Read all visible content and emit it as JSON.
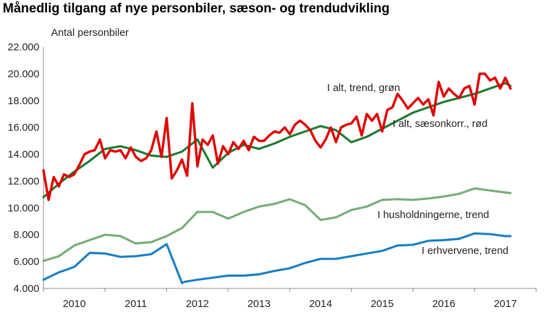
{
  "chart_data": {
    "type": "line",
    "title": "Månedlig tilgang af nye personbiler, sæson- og trendudvikling",
    "ylabel": "Antal personbiler",
    "xlabel": "",
    "ylim": [
      4000,
      22000
    ],
    "y_ticks": [
      "4.000",
      "6.000",
      "8.000",
      "10.000",
      "12.000",
      "14.000",
      "16.000",
      "18.000",
      "20.000",
      "22.000"
    ],
    "x_tick_labels": [
      "2010",
      "2011",
      "2012",
      "2013",
      "2014",
      "2015",
      "2016",
      "2017"
    ],
    "x_range": [
      2009.5,
      2017.5
    ],
    "grid": "none",
    "series": [
      {
        "name": "I alt, sæsonkorr., rød",
        "color": "#e00000",
        "x": [
          2009.5,
          2009.583,
          2009.667,
          2009.75,
          2009.833,
          2009.917,
          2010,
          2010.083,
          2010.167,
          2010.25,
          2010.333,
          2010.417,
          2010.5,
          2010.583,
          2010.667,
          2010.75,
          2010.833,
          2010.917,
          2011,
          2011.083,
          2011.167,
          2011.25,
          2011.333,
          2011.417,
          2011.5,
          2011.583,
          2011.667,
          2011.75,
          2011.833,
          2011.917,
          2012,
          2012.083,
          2012.167,
          2012.25,
          2012.333,
          2012.417,
          2012.5,
          2012.583,
          2012.667,
          2012.75,
          2012.833,
          2012.917,
          2013,
          2013.083,
          2013.167,
          2013.25,
          2013.333,
          2013.417,
          2013.5,
          2013.583,
          2013.667,
          2013.75,
          2013.833,
          2013.917,
          2014,
          2014.083,
          2014.167,
          2014.25,
          2014.333,
          2014.417,
          2014.5,
          2014.583,
          2014.667,
          2014.75,
          2014.833,
          2014.917,
          2015,
          2015.083,
          2015.167,
          2015.25,
          2015.333,
          2015.417,
          2015.5,
          2015.583,
          2015.667,
          2015.75,
          2015.833,
          2015.917,
          2016,
          2016.083,
          2016.167,
          2016.25,
          2016.333,
          2016.417,
          2016.5,
          2016.583,
          2016.667,
          2016.75,
          2016.833,
          2016.917,
          2017,
          2017.083
        ],
        "values": [
          12800,
          10600,
          12300,
          11600,
          12500,
          12300,
          12500,
          13200,
          14000,
          14200,
          14300,
          15100,
          13700,
          14300,
          14200,
          14300,
          13700,
          14500,
          13800,
          13500,
          13700,
          14300,
          15700,
          13800,
          16700,
          12200,
          12800,
          13600,
          12400,
          17800,
          13100,
          15100,
          14700,
          15400,
          13300,
          14600,
          14000,
          14900,
          14400,
          15000,
          14300,
          15300,
          15000,
          15000,
          15400,
          15700,
          15600,
          16000,
          15500,
          16200,
          16500,
          16200,
          15800,
          15000,
          14500,
          15100,
          16000,
          14900,
          16000,
          16200,
          16300,
          16800,
          15400,
          17000,
          16500,
          17000,
          15700,
          17300,
          17500,
          18500,
          18000,
          17400,
          17800,
          18200,
          17700,
          18100,
          16900,
          19400,
          18300,
          18900,
          18500,
          18200,
          18900,
          19100,
          17700,
          20000,
          20000,
          19500,
          19700,
          18900,
          19700,
          18900
        ]
      },
      {
        "name": "I alt, trend, grøn",
        "color": "#1e7a32",
        "x": [
          2009.5,
          2009.75,
          2010,
          2010.25,
          2010.5,
          2010.75,
          2011,
          2011.25,
          2011.5,
          2011.75,
          2012,
          2012.25,
          2012.5,
          2012.75,
          2013,
          2013.25,
          2013.5,
          2013.75,
          2014,
          2014.25,
          2014.5,
          2014.75,
          2015,
          2015.25,
          2015.5,
          2015.75,
          2016,
          2016.25,
          2016.5,
          2016.75,
          2017,
          2017.083
        ],
        "values": [
          10800,
          11800,
          12700,
          13500,
          14400,
          14600,
          14300,
          13900,
          13800,
          14200,
          15100,
          13000,
          14100,
          14700,
          14400,
          14800,
          15300,
          15700,
          16100,
          15800,
          14900,
          15300,
          15900,
          16500,
          17100,
          17500,
          17900,
          18200,
          18500,
          18900,
          19300,
          19100
        ]
      },
      {
        "name": "I husholdningerne, trend",
        "color": "#77ad77",
        "x": [
          2009.5,
          2009.75,
          2010,
          2010.25,
          2010.5,
          2010.75,
          2011,
          2011.25,
          2011.5,
          2011.75,
          2012,
          2012.25,
          2012.5,
          2012.75,
          2013,
          2013.25,
          2013.5,
          2013.75,
          2014,
          2014.25,
          2014.5,
          2014.75,
          2015,
          2015.25,
          2015.5,
          2015.75,
          2016,
          2016.25,
          2016.5,
          2016.75,
          2017,
          2017.083
        ],
        "values": [
          6050,
          6400,
          7200,
          7600,
          8000,
          7900,
          7350,
          7450,
          7900,
          8500,
          9700,
          9700,
          9200,
          9700,
          10100,
          10300,
          10650,
          10200,
          9100,
          9300,
          9850,
          10100,
          10600,
          10650,
          10600,
          10700,
          10850,
          11050,
          11450,
          11300,
          11150,
          11100
        ]
      },
      {
        "name": "I erhvervene, trend",
        "color": "#1a7fc4",
        "x": [
          2009.5,
          2009.75,
          2010,
          2010.25,
          2010.5,
          2010.75,
          2011,
          2011.25,
          2011.5,
          2011.75,
          2011.8,
          2012,
          2012.25,
          2012.5,
          2012.75,
          2013,
          2013.25,
          2013.5,
          2013.75,
          2014,
          2014.25,
          2014.5,
          2014.75,
          2015,
          2015.25,
          2015.5,
          2015.75,
          2016,
          2016.25,
          2016.5,
          2016.75,
          2017,
          2017.083
        ],
        "values": [
          4650,
          5200,
          5600,
          6650,
          6600,
          6350,
          6400,
          6550,
          7300,
          4400,
          4500,
          4650,
          4800,
          4950,
          4950,
          5050,
          5300,
          5500,
          5900,
          6200,
          6200,
          6400,
          6600,
          6800,
          7200,
          7250,
          7550,
          7600,
          7700,
          8100,
          8050,
          7900,
          7900
        ]
      }
    ],
    "annotations": {
      "trend_label": "I alt, trend, grøn",
      "seas_label": "I alt, sæsonkorr., rød",
      "hh_label": "I husholdningerne, trend",
      "erhv_label": "I erhvervene, trend"
    }
  }
}
